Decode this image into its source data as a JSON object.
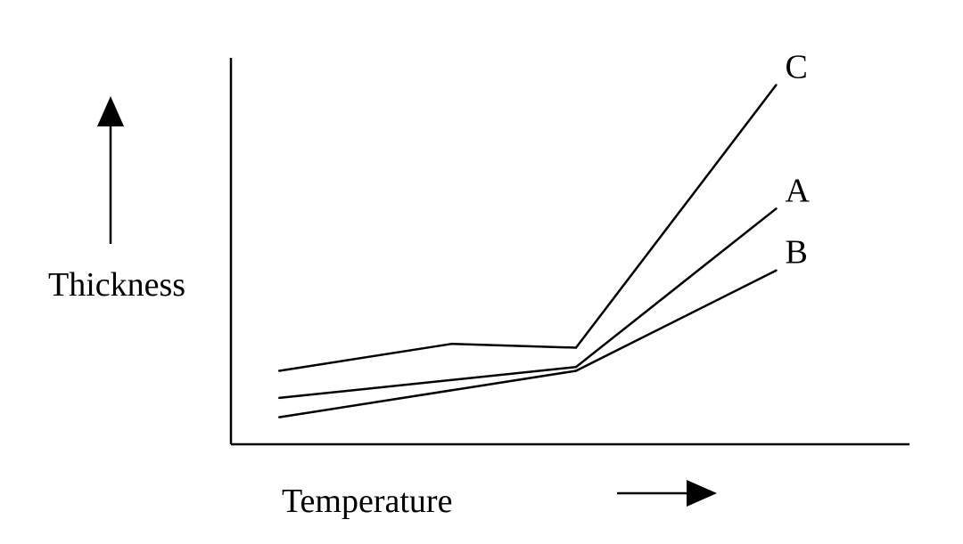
{
  "chart_data": {
    "type": "line",
    "title": "",
    "xlabel": "Temperature",
    "ylabel": "Thickness",
    "grid": false,
    "axis_ticks": false,
    "ylim": [
      0,
      10
    ],
    "xlim": [
      0,
      10
    ],
    "series": [
      {
        "name": "A",
        "points": [
          [
            0.7,
            1.2
          ],
          [
            5.0,
            2.0
          ],
          [
            7.9,
            6.1
          ]
        ]
      },
      {
        "name": "B",
        "points": [
          [
            0.7,
            0.7
          ],
          [
            5.0,
            1.9
          ],
          [
            7.9,
            4.5
          ]
        ]
      },
      {
        "name": "C",
        "points": [
          [
            0.7,
            1.9
          ],
          [
            3.2,
            2.6
          ],
          [
            5.0,
            2.5
          ],
          [
            7.9,
            9.3
          ]
        ]
      }
    ]
  }
}
